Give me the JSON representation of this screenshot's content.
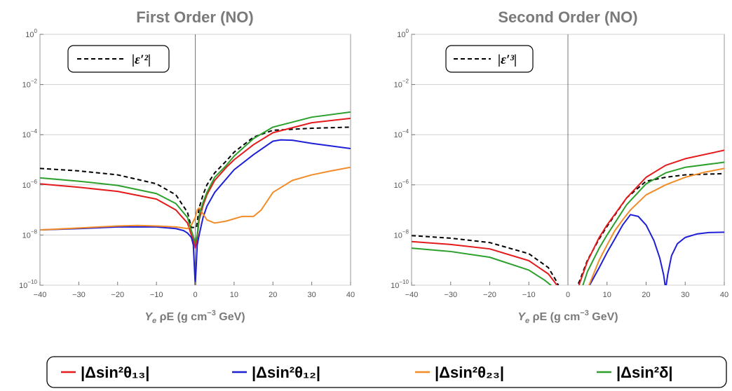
{
  "chart_data": [
    {
      "type": "line",
      "title": "First Order (NO)",
      "xlabel": "Y_e ρE (g cm^-3 GeV)",
      "ylabel": "",
      "xlim": [
        -40,
        40
      ],
      "ylim_log10": [
        -10,
        0
      ],
      "yscale": "log",
      "x_ticks": [
        -40,
        -30,
        -20,
        -10,
        0,
        10,
        20,
        30,
        40
      ],
      "y_ticks": [
        "10^0",
        "10^-2",
        "10^-4",
        "10^-6",
        "10^-8",
        "10^-10"
      ],
      "grid": "horizontal",
      "inset_legend": {
        "label": "|ε′²|",
        "placement": "top-left"
      },
      "series": [
        {
          "key": "eps",
          "name": "|ε′²|",
          "color": "#000000",
          "dash": "dashed",
          "x": [
            -40,
            -30,
            -20,
            -10,
            -5,
            -2,
            -1,
            0.3,
            1,
            2,
            3,
            5,
            8,
            10,
            15,
            20,
            30,
            40
          ],
          "y": [
            4.5e-06,
            3.6e-06,
            2.5e-06,
            1.1e-06,
            4e-07,
            8e-08,
            2e-08,
            2e-08,
            1.2e-07,
            4e-07,
            1e-06,
            3e-06,
            9e-06,
            2e-05,
            8e-05,
            0.00015,
            0.00018,
            0.0002
          ]
        },
        {
          "key": "s13",
          "name": "|Δsin²θ13|",
          "color": "#e41a1c",
          "x": [
            -40,
            -30,
            -20,
            -10,
            -5,
            -2,
            -1,
            -0.3,
            0,
            0.5,
            1,
            2,
            3,
            5,
            8,
            10,
            15,
            20,
            30,
            40
          ],
          "y": [
            1.1e-06,
            8e-07,
            5.5e-07,
            2.7e-07,
            1e-07,
            3e-08,
            1e-08,
            5e-09,
            3e-09,
            8e-09,
            4e-08,
            1.5e-07,
            4e-07,
            1.5e-06,
            5e-06,
            1e-05,
            4e-05,
            0.00012,
            0.0003,
            0.00045
          ]
        },
        {
          "key": "s12",
          "name": "|Δsin²θ12|",
          "color": "#1f1fd6",
          "x": [
            -40,
            -30,
            -20,
            -10,
            -5,
            -3,
            -2,
            -1,
            -0.5,
            0,
            0.5,
            1,
            2,
            3,
            5,
            10,
            15,
            20,
            22,
            25,
            30,
            40
          ],
          "y": [
            1.6e-08,
            1.8e-08,
            2.1e-08,
            2.1e-08,
            1.8e-08,
            1.5e-08,
            1.2e-08,
            8e-09,
            4e-09,
            1e-10,
            4e-09,
            1e-08,
            5e-08,
            1.4e-07,
            5e-07,
            4e-06,
            1.6e-05,
            5.5e-05,
            6.2e-05,
            6e-05,
            4.5e-05,
            2.8e-05
          ]
        },
        {
          "key": "s23",
          "name": "|Δsin²θ23|",
          "color": "#f28c28",
          "x": [
            -40,
            -30,
            -20,
            -15,
            -10,
            -5,
            -2,
            -1,
            0,
            0.5,
            1,
            2,
            3,
            5,
            8,
            12,
            15,
            17,
            20,
            25,
            30,
            35,
            40
          ],
          "y": [
            1.6e-08,
            1.9e-08,
            2.3e-08,
            2.4e-08,
            2.3e-08,
            2.1e-08,
            1.8e-08,
            2.5e-08,
            5e-08,
            1e-07,
            1.2e-07,
            7e-08,
            4e-08,
            3e-08,
            3.6e-08,
            5.5e-08,
            5.5e-08,
            1e-07,
            5e-07,
            1.5e-06,
            2.5e-06,
            3.6e-06,
            5e-06
          ]
        },
        {
          "key": "sd",
          "name": "|Δsin²δ|",
          "color": "#2ca02c",
          "x": [
            -40,
            -30,
            -20,
            -10,
            -5,
            -2,
            -1,
            -0.3,
            0,
            0.5,
            1,
            2,
            3,
            5,
            8,
            10,
            15,
            20,
            30,
            40
          ],
          "y": [
            1.9e-06,
            1.4e-06,
            9.5e-07,
            4.5e-07,
            1.8e-07,
            5e-08,
            1.5e-08,
            7e-09,
            5e-09,
            1e-08,
            6e-08,
            2e-07,
            5e-07,
            2e-06,
            6e-06,
            1.4e-05,
            7e-05,
            0.0002,
            0.0005,
            0.0008
          ]
        }
      ]
    },
    {
      "type": "line",
      "title": "Second Order (NO)",
      "xlabel": "Y_e ρE (g cm^-3 GeV)",
      "ylabel": "",
      "xlim": [
        -40,
        40
      ],
      "ylim_log10": [
        -10,
        0
      ],
      "yscale": "log",
      "x_ticks": [
        -40,
        -30,
        -20,
        -10,
        0,
        10,
        20,
        30,
        40
      ],
      "y_ticks": [
        "10^0",
        "10^-2",
        "10^-4",
        "10^-6",
        "10^-8",
        "10^-10"
      ],
      "grid": "horizontal",
      "inset_legend": {
        "label": "|ε′³|",
        "placement": "top-left"
      },
      "series": [
        {
          "key": "eps",
          "name": "|ε′³|",
          "color": "#000000",
          "dash": "dashed",
          "x": [
            -40,
            -30,
            -20,
            -10,
            -5,
            -3,
            -2,
            2,
            3,
            5,
            8,
            10,
            15,
            20,
            25,
            30,
            40
          ],
          "y": [
            9.5e-09,
            7.5e-09,
            5e-09,
            1.8e-09,
            5e-10,
            1.5e-10,
            7e-11,
            7e-11,
            1.5e-10,
            1e-09,
            7e-09,
            2.2e-08,
            3e-07,
            1.4e-06,
            2e-06,
            2.5e-06,
            2.8e-06
          ]
        },
        {
          "key": "s13",
          "name": "|Δsin²θ13|",
          "color": "#e41a1c",
          "x": [
            -40,
            -30,
            -20,
            -10,
            -5,
            -3,
            -2.5,
            2.5,
            3,
            5,
            8,
            10,
            15,
            20,
            25,
            30,
            40
          ],
          "y": [
            5.5e-09,
            4.2e-09,
            2.8e-09,
            9.5e-10,
            2.8e-10,
            1.1e-10,
            7e-11,
            7e-11,
            1.2e-10,
            9e-10,
            8e-09,
            2.5e-08,
            3e-07,
            2e-06,
            6e-06,
            1.1e-05,
            2.4e-05
          ]
        },
        {
          "key": "s12",
          "name": "|Δsin²θ12|",
          "color": "#1f1fd6",
          "x": [
            5,
            8,
            10,
            12,
            14,
            16,
            18,
            20,
            22,
            23.5,
            24.5,
            25,
            25.5,
            26.5,
            28,
            30,
            33,
            36,
            40
          ],
          "y": [
            7e-11,
            5e-10,
            2e-09,
            7e-09,
            2.5e-08,
            6.5e-08,
            5.5e-08,
            2.5e-08,
            6e-09,
            1.2e-09,
            2.5e-10,
            7e-11,
            2.5e-10,
            1.5e-09,
            4.5e-09,
            8e-09,
            1.1e-08,
            1.25e-08,
            1.3e-08
          ]
        },
        {
          "key": "s23",
          "name": "|Δsin²θ23|",
          "color": "#f28c28",
          "x": [
            5,
            8,
            10,
            12,
            14,
            16,
            20,
            25,
            30,
            35,
            40
          ],
          "y": [
            7e-11,
            1e-09,
            4e-09,
            1.5e-08,
            4e-08,
            1e-07,
            4e-07,
            1e-06,
            2e-06,
            3.2e-06,
            4.5e-06
          ]
        },
        {
          "key": "sd",
          "name": "|Δsin²δ|",
          "color": "#2ca02c",
          "x": [
            -40,
            -30,
            -20,
            -10,
            -6,
            -4,
            -3.5,
            3.5,
            4,
            5,
            8,
            10,
            15,
            20,
            25,
            30,
            40
          ],
          "y": [
            3e-09,
            2.2e-09,
            1.3e-09,
            4e-10,
            1.6e-10,
            9e-11,
            7e-11,
            7e-11,
            1.2e-10,
            3.5e-10,
            3e-09,
            1e-08,
            1.6e-07,
            1.1e-06,
            3e-06,
            5e-06,
            8e-06
          ]
        }
      ]
    }
  ],
  "legend": {
    "items": [
      {
        "key": "s13",
        "label": "|Δsin²θ₁₃|",
        "color": "#e41a1c"
      },
      {
        "key": "s12",
        "label": "|Δsin²θ₁₂|",
        "color": "#1f1fd6"
      },
      {
        "key": "s23",
        "label": "|Δsin²θ₂₃|",
        "color": "#f28c28"
      },
      {
        "key": "sd",
        "label": "|Δsin²δ|",
        "color": "#2ca02c"
      }
    ]
  }
}
